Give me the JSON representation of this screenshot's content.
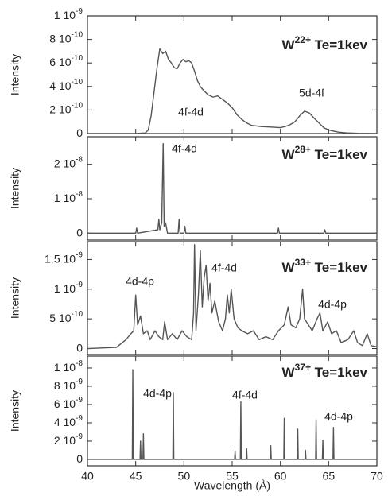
{
  "chart_data": [
    {
      "type": "line",
      "title_parts": [
        "W",
        "22+",
        " Te=1kev"
      ],
      "ylabel": "Intensity",
      "color": "#555555",
      "xlim": [
        40,
        70
      ],
      "xticks": [
        40,
        45,
        50,
        55,
        60,
        65,
        70
      ],
      "ylim": [
        0,
        1e-09
      ],
      "yticks": [
        0,
        {
          "value": 2e-10,
          "label": "2 10",
          "exponent": "-10"
        },
        {
          "value": 4e-10,
          "label": "4 10",
          "exponent": "-10"
        },
        {
          "value": 6e-10,
          "label": "6 10",
          "exponent": "-10"
        },
        {
          "value": 8e-10,
          "label": "8 10",
          "exponent": "-10"
        },
        {
          "value": 1e-09,
          "label": "1 10",
          "exponent": "-9"
        }
      ],
      "annotations": [
        "4f-4d",
        "5d-4f"
      ],
      "x": [
        40,
        45,
        46,
        46.3,
        46.6,
        46.9,
        47.2,
        47.5,
        47.8,
        48.1,
        48.4,
        48.7,
        49,
        49.3,
        49.6,
        49.9,
        50.2,
        50.5,
        50.8,
        51.1,
        51.4,
        51.7,
        52,
        52.5,
        53,
        53.5,
        54,
        54.5,
        55,
        55.5,
        56,
        56.5,
        57,
        58,
        59,
        60,
        60.5,
        61,
        61.5,
        62,
        62.5,
        63,
        63.5,
        64,
        64.5,
        65,
        66,
        67,
        68,
        70
      ],
      "values": [
        0,
        0,
        5e-12,
        3e-11,
        1.5e-10,
        3.5e-10,
        5.5e-10,
        7.2e-10,
        6.8e-10,
        7e-10,
        6.3e-10,
        6e-10,
        5.6e-10,
        5.5e-10,
        6e-10,
        6.3e-10,
        6.1e-10,
        6.2e-10,
        6e-10,
        5.3e-10,
        4.5e-10,
        4e-10,
        3.7e-10,
        3.3e-10,
        3.1e-10,
        3.2e-10,
        2.9e-10,
        2.6e-10,
        2.2e-10,
        1.6e-10,
        1.2e-10,
        9e-11,
        7e-11,
        6e-11,
        5.5e-11,
        5e-11,
        6e-11,
        7.5e-11,
        1e-10,
        1.5e-10,
        1.9e-10,
        1.75e-10,
        1.3e-10,
        9e-11,
        5e-11,
        3e-11,
        1.2e-11,
        5e-12,
        2e-12,
        0
      ]
    },
    {
      "type": "line",
      "title_parts": [
        "W",
        "28+",
        " Te=1kev"
      ],
      "ylabel": "Intensity",
      "color": "#555555",
      "xlim": [
        40,
        70
      ],
      "xticks": [
        40,
        45,
        50,
        55,
        60,
        65,
        70
      ],
      "ylim": [
        -2e-09,
        2.8e-08
      ],
      "yticks": [
        0,
        {
          "value": 1e-08,
          "label": "1 10",
          "exponent": "-8"
        },
        {
          "value": 2e-08,
          "label": "2 10",
          "exponent": "-8"
        }
      ],
      "annotations": [
        "4f-4d"
      ],
      "x": [
        40,
        45,
        45.1,
        45.2,
        47.3,
        47.4,
        47.5,
        47.7,
        47.85,
        47.95,
        48.1,
        48.3,
        49.4,
        49.5,
        49.6,
        50,
        50.1,
        50.2,
        59.7,
        59.8,
        59.9,
        64.5,
        64.6,
        64.7,
        70
      ],
      "values": [
        0,
        0,
        1.5e-09,
        0,
        1e-09,
        4e-09,
        1e-09,
        3e-09,
        2.6e-08,
        2e-09,
        3e-09,
        0,
        0,
        4e-09,
        0,
        0,
        2e-09,
        0,
        0,
        1.5e-09,
        0,
        0,
        1e-09,
        0,
        0
      ]
    },
    {
      "type": "line",
      "title_parts": [
        "W",
        "33+",
        " Te=1kev"
      ],
      "ylabel": "Intensity",
      "color": "#555555",
      "xlim": [
        40,
        70
      ],
      "xticks": [
        40,
        45,
        50,
        55,
        60,
        65,
        70
      ],
      "ylim": [
        -1e-10,
        1.8e-09
      ],
      "yticks": [
        0,
        {
          "value": 5e-10,
          "label": "5 10",
          "exponent": "-10"
        },
        {
          "value": 1e-09,
          "label": "1 10",
          "exponent": "-9"
        },
        {
          "value": 1.5e-09,
          "label": "1.5 10",
          "exponent": "-9"
        }
      ],
      "annotations": [
        "4d-4p",
        "4f-4d",
        "4d-4p"
      ],
      "x": [
        40,
        43,
        44,
        44.5,
        44.8,
        45,
        45.2,
        45.5,
        45.8,
        46.2,
        46.5,
        47,
        47.4,
        47.8,
        48,
        48.3,
        48.8,
        49.3,
        49.8,
        50.3,
        50.8,
        51,
        51.1,
        51.25,
        51.5,
        51.7,
        51.9,
        52.1,
        52.3,
        52.5,
        52.7,
        52.9,
        53.2,
        53.6,
        54,
        54.3,
        54.5,
        54.7,
        54.9,
        55.2,
        55.6,
        56,
        56.6,
        57.2,
        57.8,
        58.5,
        59.2,
        59.8,
        60.4,
        60.8,
        61.1,
        61.6,
        62,
        62.3,
        62.5,
        62.9,
        63.3,
        63.8,
        64.1,
        64.4,
        64.9,
        65.3,
        65.8,
        66.3,
        67,
        67.6,
        68,
        68.5,
        69,
        69.4,
        70
      ],
      "values": [
        0,
        2e-11,
        1.5e-10,
        2.5e-10,
        3e-10,
        9e-10,
        4e-10,
        5.5e-10,
        2.5e-10,
        3e-10,
        1.5e-10,
        3e-10,
        2e-10,
        1.5e-10,
        4.5e-10,
        1.5e-10,
        2.5e-10,
        1.5e-10,
        3e-10,
        2e-10,
        1.5e-10,
        6e-10,
        1.75e-09,
        3e-10,
        9e-10,
        1.65e-09,
        7e-10,
        1.2e-09,
        1.4e-09,
        8e-10,
        1.1e-09,
        6e-10,
        8e-10,
        4.5e-10,
        3e-10,
        5e-10,
        9e-10,
        6e-10,
        1e-09,
        5e-10,
        3.5e-10,
        3e-10,
        2.5e-10,
        3e-10,
        1.5e-10,
        2e-10,
        1.5e-10,
        3e-10,
        4e-10,
        7e-10,
        4e-10,
        3.5e-10,
        5e-10,
        1e-09,
        5e-10,
        4e-10,
        3e-10,
        5e-10,
        6e-10,
        3e-10,
        4.5e-10,
        2.5e-10,
        3e-10,
        1e-10,
        1.5e-10,
        3e-10,
        1e-10,
        5e-11,
        2.5e-10,
        5e-11,
        3e-11
      ]
    },
    {
      "type": "line",
      "title_parts": [
        "W",
        "37+",
        " Te=1kev"
      ],
      "ylabel": "Intensity",
      "xlabel": "Wavelength (Å)",
      "color": "#555555",
      "xlim": [
        40,
        70
      ],
      "xticks": [
        40,
        45,
        50,
        55,
        60,
        65,
        70
      ],
      "ylim": [
        -7e-10,
        1.13e-08
      ],
      "yticks": [
        0,
        {
          "value": 2e-09,
          "label": "2 10",
          "exponent": "-9"
        },
        {
          "value": 4e-09,
          "label": "4 10",
          "exponent": "-9"
        },
        {
          "value": 6e-09,
          "label": "6 10",
          "exponent": "-9"
        },
        {
          "value": 8e-09,
          "label": "8 10",
          "exponent": "-9"
        },
        {
          "value": 1e-08,
          "label": "1 10",
          "exponent": "-8"
        }
      ],
      "annotations": [
        "4d-4p",
        "4f-4d",
        "4d-4p"
      ],
      "x": [
        40,
        44.65,
        44.7,
        44.75,
        45.45,
        45.5,
        45.55,
        45.75,
        45.8,
        45.85,
        48.85,
        48.9,
        48.95,
        55.25,
        55.3,
        55.35,
        55.85,
        55.9,
        55.95,
        56.45,
        56.5,
        56.55,
        58.95,
        59,
        59.05,
        60.35,
        60.4,
        60.45,
        61.75,
        61.8,
        61.85,
        62.55,
        62.6,
        62.65,
        63.65,
        63.7,
        63.75,
        64.35,
        64.4,
        64.45,
        65.45,
        65.5,
        65.55,
        70
      ],
      "values": [
        0,
        0,
        9.8e-09,
        0,
        0,
        2e-09,
        0,
        0,
        2.8e-09,
        0,
        0,
        7.3e-09,
        0,
        0,
        9e-10,
        0,
        0,
        6.3e-09,
        0,
        0,
        1.2e-09,
        0,
        0,
        1.5e-09,
        0,
        0,
        4.5e-09,
        0,
        0,
        3.3e-09,
        0,
        0,
        1e-09,
        0,
        0,
        4.3e-09,
        0,
        0,
        2.1e-09,
        0,
        0,
        3.5e-09,
        0,
        0
      ]
    }
  ]
}
